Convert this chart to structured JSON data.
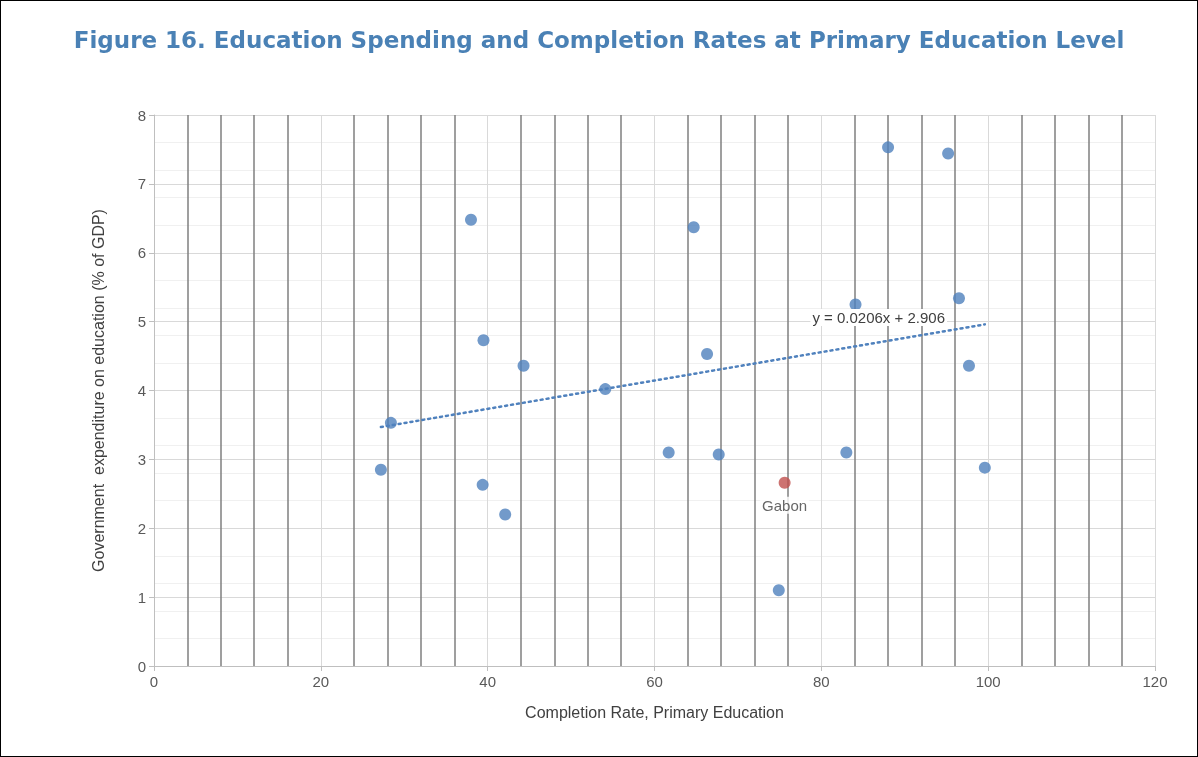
{
  "chart_data": {
    "type": "scatter",
    "title": "Figure 16. Education Spending and Completion Rates at Primary Education Level",
    "xlabel": "Completion Rate, Primary Education",
    "ylabel": "Government  expenditure on education (% of GDP)",
    "xlim": [
      0,
      120
    ],
    "xticks": [
      0,
      20,
      40,
      60,
      80,
      100,
      120
    ],
    "ylim": [
      0,
      8
    ],
    "yticks": [
      0,
      1,
      2,
      3,
      4,
      5,
      6,
      7,
      8
    ],
    "grid": true,
    "marker": "circle",
    "series": [
      {
        "color": "#4f81bd",
        "x": [
          27.2,
          28.4,
          39.4,
          39.5,
          38.0,
          42.1,
          44.3,
          54.1,
          61.7,
          64.7,
          66.3,
          67.7,
          74.9,
          83.0,
          84.1,
          88.0,
          95.2,
          96.5,
          97.7,
          99.6
        ],
        "values": [
          2.85,
          3.53,
          2.63,
          4.73,
          6.48,
          2.2,
          4.36,
          4.02,
          3.1,
          6.37,
          4.53,
          3.07,
          1.1,
          3.1,
          5.25,
          7.53,
          7.44,
          5.34,
          4.36,
          2.88
        ]
      },
      {
        "color": "#c0504d",
        "x": [
          75.6
        ],
        "values": [
          2.66
        ]
      },
      {
        "type": "line",
        "color": "#4f81bd",
        "line_style": "dotted",
        "marker": "none",
        "x": [
          27.2,
          99.6
        ],
        "values": [
          3.47,
          4.96
        ]
      }
    ],
    "annotations": [
      "y = 0.0206x + 2.906",
      {
        "text": "Gabon",
        "x": 75.6,
        "y": 2.66
      }
    ]
  }
}
